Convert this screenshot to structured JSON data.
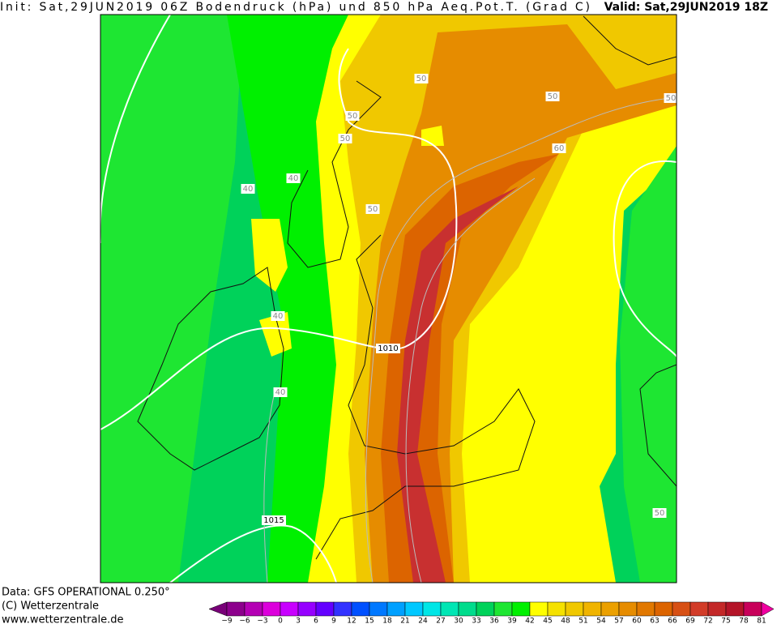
{
  "header": {
    "init": "Init: Sat,29JUN2019 06Z Bodendruck (hPa) und 850 hPa Aeq.Pot.T. (Grad C)",
    "valid": "Valid: Sat,29JUN2019 18Z"
  },
  "contour_labels": [
    "50",
    "50",
    "50",
    "50",
    "50",
    "50",
    "50",
    "60",
    "40",
    "40",
    "40",
    "40",
    "1010",
    "1015"
  ],
  "colorbar": {
    "labels": [
      "−9",
      "−6",
      "−3",
      "0",
      "3",
      "6",
      "9",
      "12",
      "15",
      "18",
      "21",
      "24",
      "27",
      "30",
      "33",
      "36",
      "39",
      "42",
      "45",
      "48",
      "51",
      "54",
      "57",
      "60",
      "63",
      "66",
      "69",
      "72",
      "75",
      "78",
      "81"
    ],
    "colors": [
      "#780078",
      "#8c008c",
      "#b400b4",
      "#dc00dc",
      "#c800ff",
      "#9600ff",
      "#6400ff",
      "#3232ff",
      "#0050ff",
      "#0078ff",
      "#00a0ff",
      "#00c8ff",
      "#00e6e6",
      "#00e6b4",
      "#00dc8c",
      "#00d25a",
      "#1ee632",
      "#00f000",
      "#ffff00",
      "#f5e100",
      "#f0c800",
      "#f0b400",
      "#eba000",
      "#e68c00",
      "#e17800",
      "#dc6400",
      "#d75014",
      "#d23c28",
      "#c32828",
      "#b41428",
      "#c8005a",
      "#f000a0"
    ]
  },
  "footer": {
    "lines": [
      "Data: GFS OPERATIONAL 0.250°",
      "(C) Wetterzentrale",
      "www.wetterzentrale.de"
    ]
  }
}
